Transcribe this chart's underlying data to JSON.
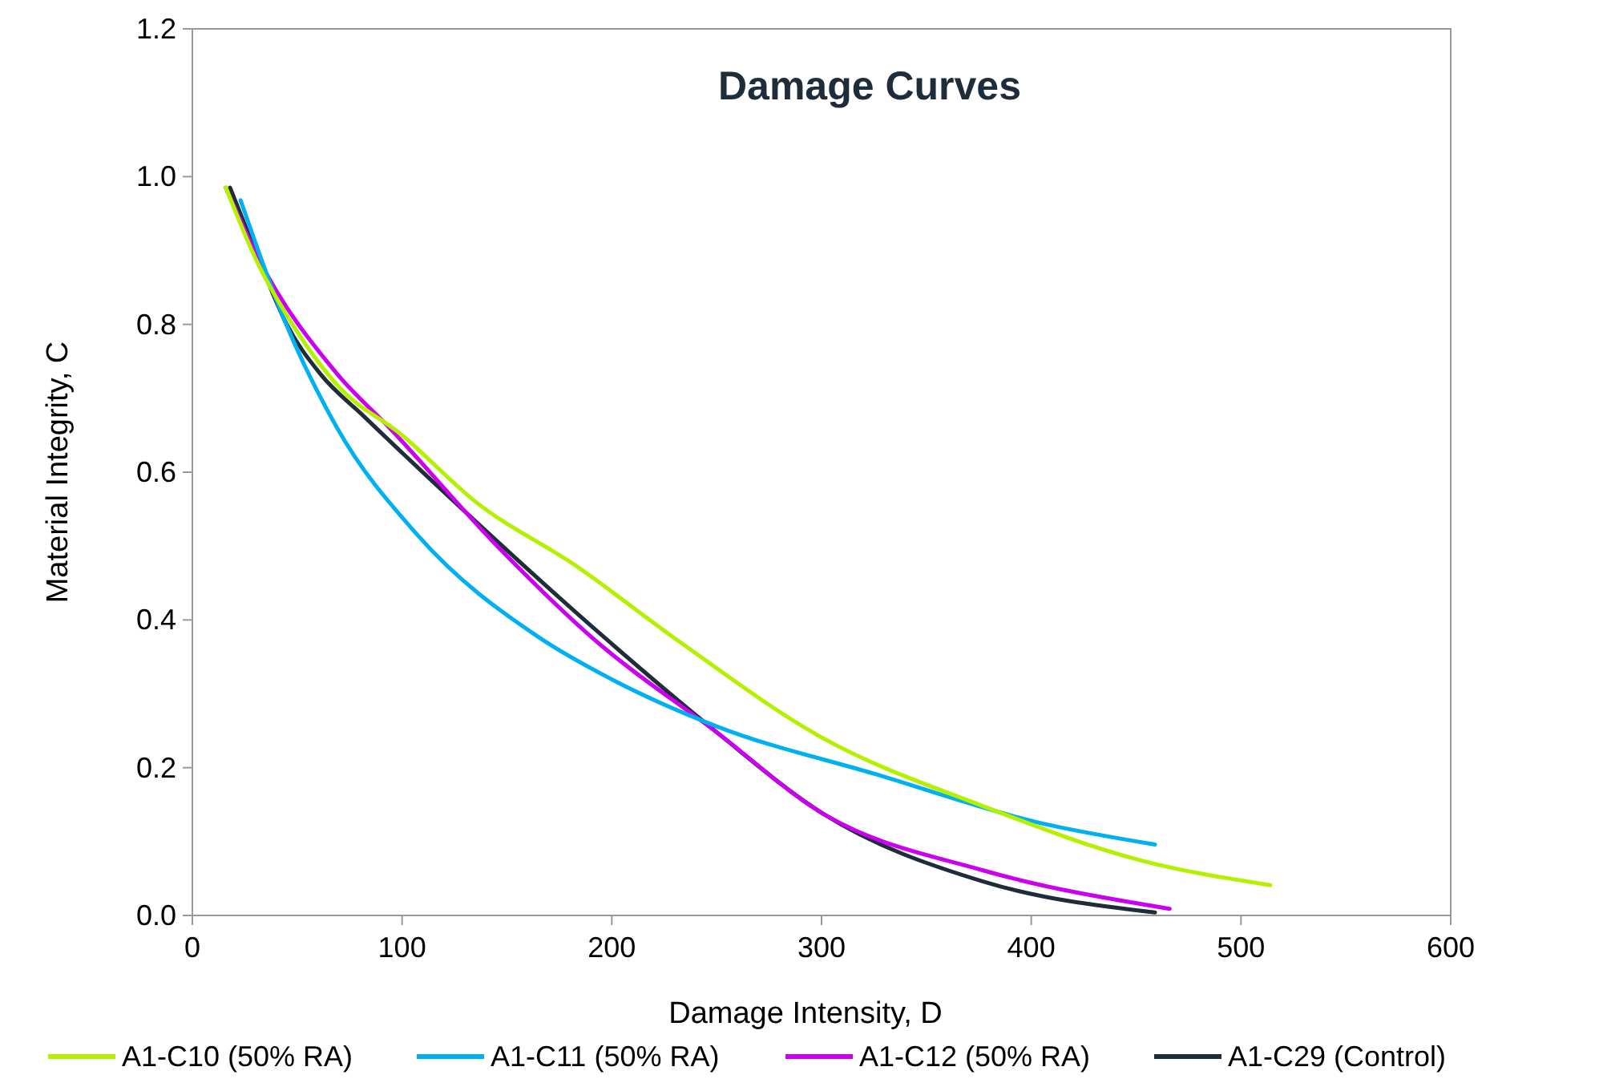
{
  "chart_data": {
    "type": "line",
    "title": "Damage Curves",
    "xlabel": "Damage Intensity, D",
    "ylabel": "Material Integrity, C",
    "xlim": [
      0,
      600
    ],
    "xticks": [
      0,
      100,
      200,
      300,
      400,
      500,
      600
    ],
    "ylim": [
      0,
      1.2
    ],
    "yticks": [
      {
        "value": 0,
        "label": "0.0"
      },
      {
        "value": 0.2,
        "label": "0.2"
      },
      {
        "value": 0.4,
        "label": "0.4"
      },
      {
        "value": 0.6,
        "label": "0.6"
      },
      {
        "value": 0.8,
        "label": "0.8"
      },
      {
        "value": 1,
        "label": "1.0"
      },
      {
        "value": 1.2,
        "label": "1.2"
      }
    ],
    "grid": false,
    "legend": "bottom",
    "marker": "none",
    "line_style": "solid",
    "series": [
      {
        "name": "A1-C10 (50% RA)",
        "color": "#b4f000",
        "x": [
          16,
          30,
          50,
          69,
          100,
          135,
          183,
          232,
          300,
          377,
          453,
          514
        ],
        "values": [
          0.985,
          0.89,
          0.79,
          0.718,
          0.65,
          0.56,
          0.473,
          0.371,
          0.241,
          0.148,
          0.074,
          0.041
        ]
      },
      {
        "name": "A1-C11 (50% RA)",
        "color": "#00b0f0",
        "x": [
          23,
          44,
          69,
          107,
          166,
          199,
          250,
          326,
          403,
          459
        ],
        "values": [
          0.968,
          0.805,
          0.66,
          0.516,
          0.375,
          0.321,
          0.256,
          0.191,
          0.126,
          0.096
        ]
      },
      {
        "name": "A1-C12 (50% RA)",
        "color": "#cc00f0",
        "x": [
          16,
          31,
          69,
          94,
          145,
          191,
          250,
          300,
          377,
          466
        ],
        "values": [
          0.985,
          0.892,
          0.733,
          0.66,
          0.501,
          0.375,
          0.248,
          0.139,
          0.061,
          0.009
        ]
      },
      {
        "name": "A1-C29 (Control)",
        "color": "#1f2d3a",
        "x": [
          18,
          30,
          45,
          61,
          82,
          120,
          199,
          250,
          300,
          377,
          459
        ],
        "values": [
          0.985,
          0.9,
          0.8,
          0.733,
          0.675,
          0.573,
          0.37,
          0.248,
          0.139,
          0.046,
          0.004
        ]
      }
    ]
  }
}
